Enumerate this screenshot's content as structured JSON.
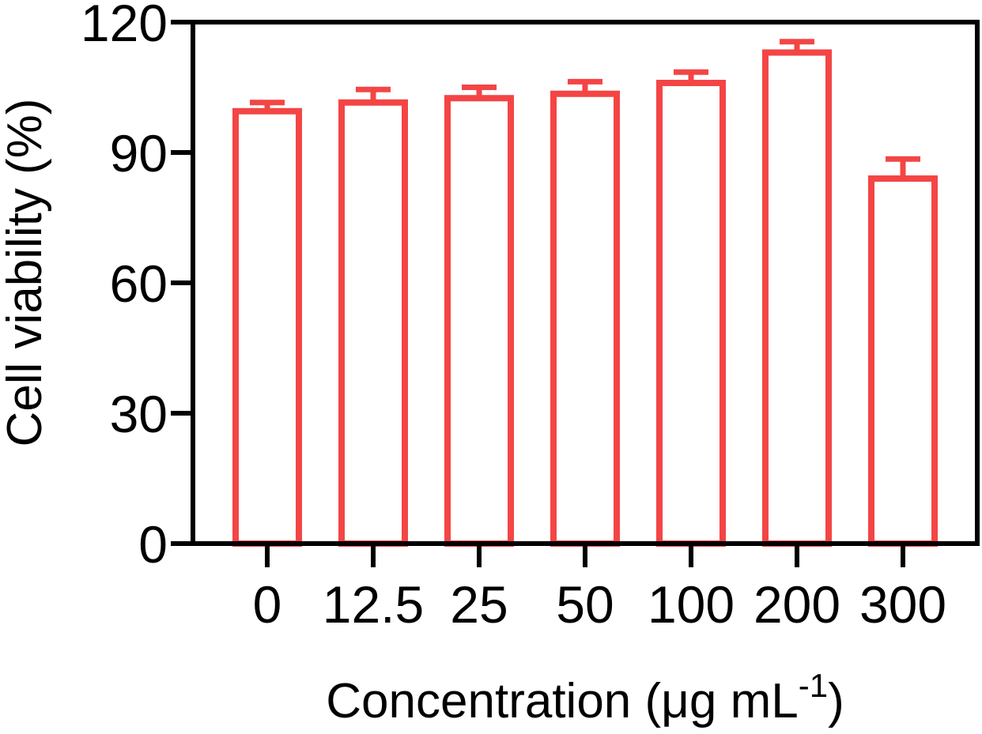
{
  "chart_data": {
    "type": "bar",
    "title": "",
    "ylabel": "Cell viability (%)",
    "xlabel": {
      "text": "Concentration (μg mL",
      "superscript": "-1",
      "suffix": ")"
    },
    "categories": [
      "0",
      "12.5",
      "25",
      "50",
      "100",
      "200",
      "300"
    ],
    "values": [
      99.5,
      101.5,
      102.5,
      103.5,
      106,
      113,
      84
    ],
    "errors": [
      2,
      3,
      2.5,
      2.8,
      2.5,
      2.5,
      4.5
    ],
    "ylim": [
      0,
      120
    ],
    "yticks": [
      0,
      30,
      60,
      90,
      120
    ],
    "grid": false,
    "legend": "none",
    "colors": {
      "bar_stroke": "#f44545",
      "bar_fill": "#ffffff",
      "axis": "#000000"
    }
  }
}
